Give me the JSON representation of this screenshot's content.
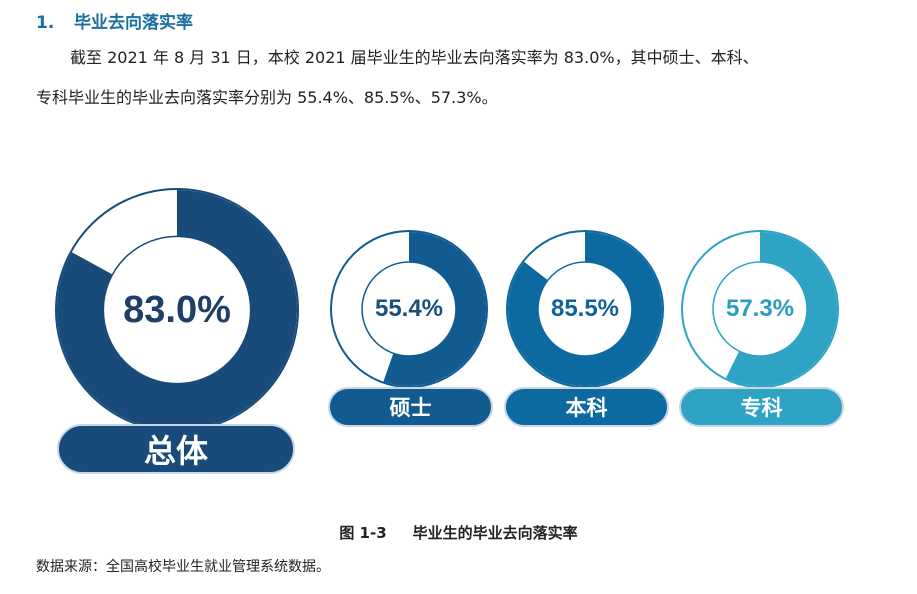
{
  "section": {
    "number": "1.",
    "title": "毕业去向落实率"
  },
  "body": {
    "paragraph_line1": "截至 2021 年 8 月 31 日，本校 2021 届毕业生的毕业去向落实率为 83.0%，其中硕士、本科、",
    "paragraph_line2": "专科毕业生的毕业去向落实率分别为 55.4%、85.5%、57.3%。"
  },
  "chart_data": {
    "type": "donut",
    "items": [
      {
        "name": "总体",
        "label": "83.0%",
        "value": 83.0,
        "color": "#184b79"
      },
      {
        "name": "硕士",
        "label": "55.4%",
        "value": 55.4,
        "color": "#125b91"
      },
      {
        "name": "本科",
        "label": "85.5%",
        "value": 85.5,
        "color": "#0d6aa1"
      },
      {
        "name": "专科",
        "label": "57.3%",
        "value": 57.3,
        "color": "#2ea3c4"
      }
    ]
  },
  "figure": {
    "number": "图 1-3",
    "caption": "毕业生的毕业去向落实率"
  },
  "source": "数据来源：全国高校毕业生就业管理系统数据。"
}
